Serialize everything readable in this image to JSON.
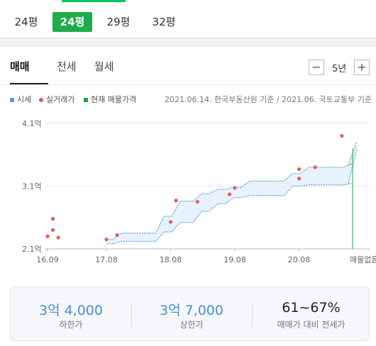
{
  "size_tabs": [
    "24평",
    "24평",
    "29평",
    "32평"
  ],
  "type_tabs": [
    "매매",
    "전세",
    "월세"
  ],
  "period": {
    "value": "5년",
    "minus": "−",
    "plus": "+"
  },
  "legend": {
    "sise": "시세",
    "actual": "실거래가",
    "current": "현재 매물가격"
  },
  "source": "2021.06.14. 한국부동산원 기준 / 2021.06. 국토교통부 기준",
  "colors": {
    "sise": "#5b9bd5",
    "actual": "#e8585a",
    "current": "#1fa54a",
    "band_fill": "#e8f2fc"
  },
  "chart_data": {
    "type": "line",
    "y_ticks": [
      "4.1억",
      "3.1억",
      "2.1억"
    ],
    "x_ticks": [
      "16.09",
      "17.08",
      "18.08",
      "19.08",
      "20.08"
    ],
    "end_label": "매물없음",
    "ylim": [
      2.1,
      4.1
    ],
    "y_unit": "억",
    "x_range": [
      "2016-09",
      "2021-06"
    ],
    "sise_band": [
      {
        "x": "2017-08",
        "low": 2.18,
        "high": 2.25
      },
      {
        "x": "2017-10",
        "low": 2.22,
        "high": 2.35
      },
      {
        "x": "2018-06",
        "low": 2.37,
        "high": 2.62
      },
      {
        "x": "2018-09",
        "low": 2.52,
        "high": 2.86
      },
      {
        "x": "2019-01",
        "low": 2.7,
        "high": 2.98
      },
      {
        "x": "2019-04",
        "low": 2.82,
        "high": 3.05
      },
      {
        "x": "2019-07",
        "low": 2.92,
        "high": 3.08
      },
      {
        "x": "2019-10",
        "low": 2.95,
        "high": 3.18
      },
      {
        "x": "2020-06",
        "low": 3.1,
        "high": 3.3
      },
      {
        "x": "2020-09",
        "low": 3.12,
        "high": 3.4
      },
      {
        "x": "2021-05",
        "low": 3.14,
        "high": 3.45
      },
      {
        "x": "2021-06",
        "low": 3.7,
        "high": 3.8
      }
    ],
    "actual_trades": [
      {
        "x": "2016-09",
        "y": 2.3
      },
      {
        "x": "2016-10",
        "y": 2.4
      },
      {
        "x": "2016-10",
        "y": 2.58
      },
      {
        "x": "2016-11",
        "y": 2.28
      },
      {
        "x": "2017-08",
        "y": 2.25
      },
      {
        "x": "2017-10",
        "y": 2.32
      },
      {
        "x": "2018-08",
        "y": 2.53
      },
      {
        "x": "2018-09",
        "y": 2.87
      },
      {
        "x": "2019-01",
        "y": 2.85
      },
      {
        "x": "2019-07",
        "y": 2.97
      },
      {
        "x": "2019-08",
        "y": 3.07
      },
      {
        "x": "2020-08",
        "y": 3.22
      },
      {
        "x": "2020-08",
        "y": 3.37
      },
      {
        "x": "2020-11",
        "y": 3.4
      },
      {
        "x": "2021-04",
        "y": 3.9
      }
    ]
  },
  "summary": {
    "low_value": "3억 4,000",
    "low_label": "하한가",
    "high_value": "3억 7,000",
    "high_label": "상한가",
    "ratio_value": "61~67%",
    "ratio_label": "매매가 대비 전세가"
  }
}
